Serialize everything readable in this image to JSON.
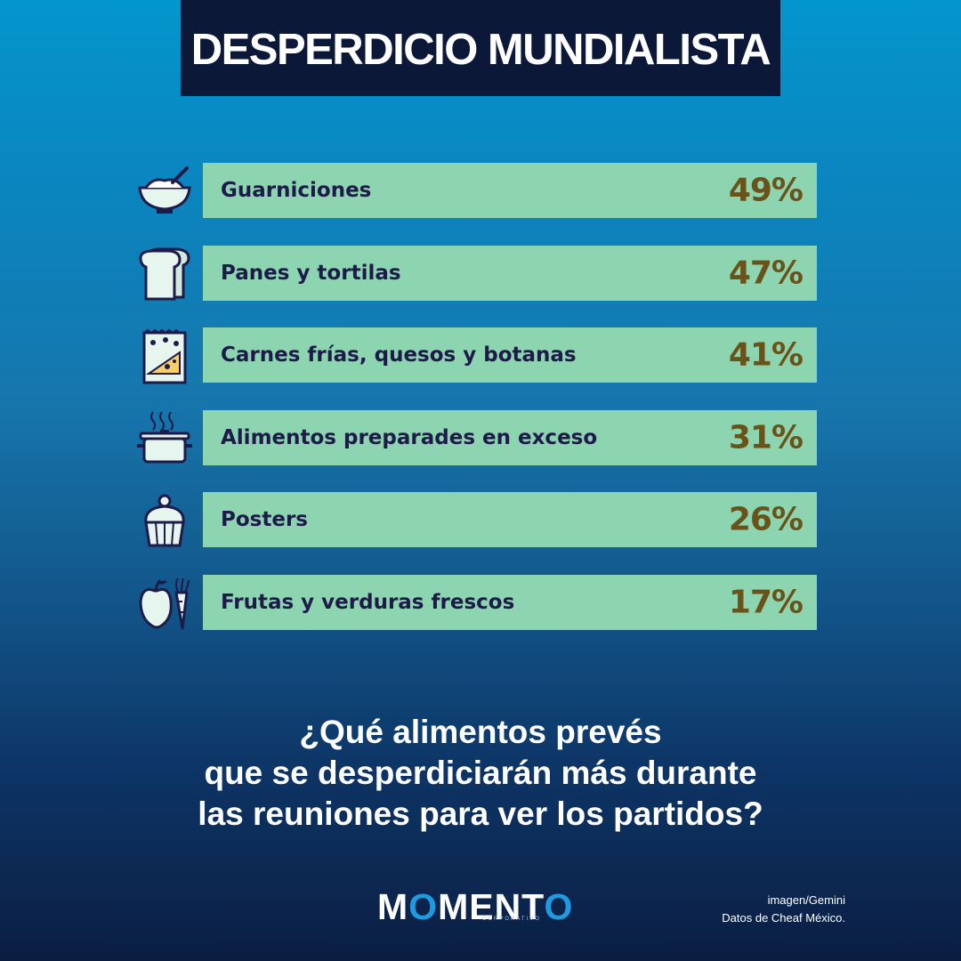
{
  "title": "DESPERDICIO MUNDIALISTA",
  "chart_data": {
    "type": "bar",
    "title": "DESPERDICIO MUNDIALISTA",
    "categories": [
      "Guarniciones",
      "Panes y tortilas",
      "Carnes frías, quesos y botanas",
      "Alimentos preparades en exceso",
      "Posters",
      "Frutas y verduras frescos"
    ],
    "values": [
      49,
      47,
      41,
      31,
      26,
      17
    ],
    "value_labels": [
      "49%",
      "47%",
      "41%",
      "31%",
      "26%",
      "17%"
    ],
    "icons": [
      "bowl-icon",
      "bread-icon",
      "snack-bag-icon",
      "cooking-pot-icon",
      "cupcake-icon",
      "apple-carrot-icon"
    ],
    "bar_color": "#8dd4b0",
    "label_color": "#1e1b4a",
    "value_color": "#6a5218"
  },
  "question": {
    "line1": "¿Qué alimentos prevés",
    "line2": "que se desperdiciarán más durante",
    "line3": "las reuniones para ver los partidos?"
  },
  "logo": {
    "part1": "M",
    "part2": "O",
    "part3": "MENT",
    "part4": "O",
    "sub": "CORPORATIVO"
  },
  "credits": {
    "line1": "imagen/Gemini",
    "line2": "Datos de Cheaf México."
  },
  "colors": {
    "banner": "#0b1838",
    "accent": "#1e9be0"
  }
}
